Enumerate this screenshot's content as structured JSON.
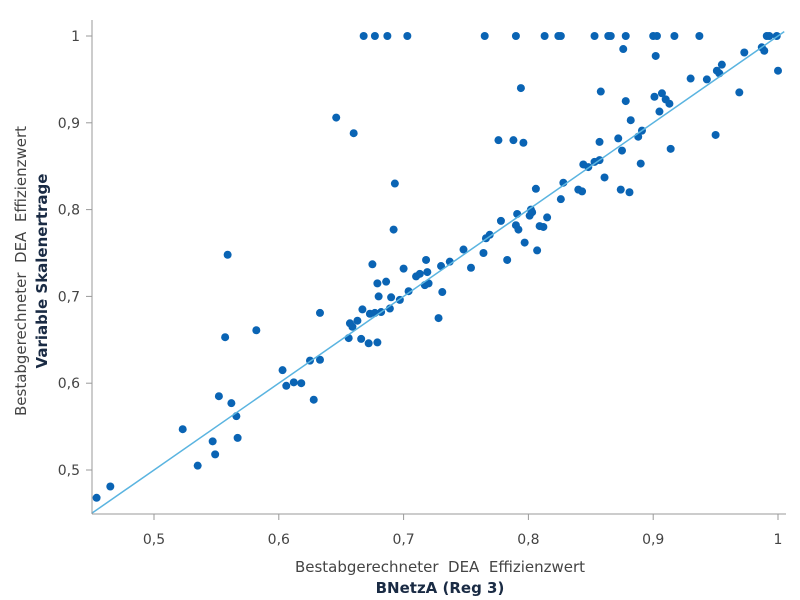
{
  "chart_data": {
    "type": "scatter",
    "xlabel": "Bestabgerechneter  DEA  Effizienzwert",
    "xlabel_bold": "BNetzA (Reg 3)",
    "ylabel": "Bestabgerechneter  DEA  Effizienzwert",
    "ylabel_bold": "Variable Skalenertrage",
    "xlim": [
      0.45,
      1.005
    ],
    "ylim": [
      0.45,
      1.005
    ],
    "x_ticks": [
      0.5,
      0.6,
      0.7,
      0.8,
      0.9,
      1.0
    ],
    "x_tick_labels": [
      "0,5",
      "0,6",
      "0,7",
      "0,8",
      "0,9",
      "1"
    ],
    "y_ticks": [
      0.5,
      0.6,
      0.7,
      0.8,
      0.9,
      1.0
    ],
    "y_tick_labels": [
      "0,5",
      "0,6",
      "0,7",
      "0,8",
      "0,9",
      "1"
    ],
    "grid": false,
    "reference_line": {
      "from": [
        0.45,
        0.45
      ],
      "to": [
        1.005,
        1.005
      ],
      "color": "#5ab4e0"
    },
    "point_color": "#0a64b4",
    "points": [
      [
        0.454,
        0.468
      ],
      [
        0.465,
        0.481
      ],
      [
        0.523,
        0.547
      ],
      [
        0.535,
        0.505
      ],
      [
        0.547,
        0.533
      ],
      [
        0.549,
        0.518
      ],
      [
        0.552,
        0.585
      ],
      [
        0.557,
        0.653
      ],
      [
        0.559,
        0.748
      ],
      [
        0.562,
        0.577
      ],
      [
        0.566,
        0.562
      ],
      [
        0.567,
        0.537
      ],
      [
        0.582,
        0.661
      ],
      [
        0.603,
        0.615
      ],
      [
        0.606,
        0.597
      ],
      [
        0.612,
        0.601
      ],
      [
        0.618,
        0.6
      ],
      [
        0.625,
        0.626
      ],
      [
        0.628,
        0.581
      ],
      [
        0.633,
        0.627
      ],
      [
        0.633,
        0.681
      ],
      [
        0.646,
        0.906
      ],
      [
        0.656,
        0.652
      ],
      [
        0.657,
        0.669
      ],
      [
        0.659,
        0.665
      ],
      [
        0.66,
        0.888
      ],
      [
        0.663,
        0.672
      ],
      [
        0.666,
        0.651
      ],
      [
        0.667,
        0.685
      ],
      [
        0.672,
        0.646
      ],
      [
        0.673,
        0.68
      ],
      [
        0.675,
        0.737
      ],
      [
        0.677,
        0.681
      ],
      [
        0.679,
        0.715
      ],
      [
        0.679,
        0.647
      ],
      [
        0.68,
        0.7
      ],
      [
        0.682,
        0.682
      ],
      [
        0.686,
        0.717
      ],
      [
        0.689,
        0.686
      ],
      [
        0.69,
        0.699
      ],
      [
        0.692,
        0.777
      ],
      [
        0.693,
        0.83
      ],
      [
        0.697,
        0.696
      ],
      [
        0.7,
        0.732
      ],
      [
        0.704,
        0.706
      ],
      [
        0.71,
        0.723
      ],
      [
        0.713,
        0.726
      ],
      [
        0.717,
        0.713
      ],
      [
        0.718,
        0.742
      ],
      [
        0.719,
        0.728
      ],
      [
        0.72,
        0.715
      ],
      [
        0.728,
        0.675
      ],
      [
        0.73,
        0.735
      ],
      [
        0.731,
        0.705
      ],
      [
        0.737,
        0.74
      ],
      [
        0.748,
        0.754
      ],
      [
        0.754,
        0.733
      ],
      [
        0.764,
        0.75
      ],
      [
        0.766,
        0.767
      ],
      [
        0.769,
        0.771
      ],
      [
        0.776,
        0.88
      ],
      [
        0.778,
        0.787
      ],
      [
        0.783,
        0.742
      ],
      [
        0.788,
        0.88
      ],
      [
        0.79,
        0.782
      ],
      [
        0.791,
        0.795
      ],
      [
        0.792,
        0.777
      ],
      [
        0.794,
        0.94
      ],
      [
        0.796,
        0.877
      ],
      [
        0.797,
        0.762
      ],
      [
        0.801,
        0.793
      ],
      [
        0.802,
        0.8
      ],
      [
        0.803,
        0.797
      ],
      [
        0.806,
        0.824
      ],
      [
        0.807,
        0.753
      ],
      [
        0.809,
        0.781
      ],
      [
        0.812,
        0.78
      ],
      [
        0.815,
        0.791
      ],
      [
        0.826,
        0.812
      ],
      [
        0.828,
        0.831
      ],
      [
        0.84,
        0.823
      ],
      [
        0.843,
        0.821
      ],
      [
        0.844,
        0.852
      ],
      [
        0.848,
        0.849
      ],
      [
        0.853,
        0.855
      ],
      [
        0.857,
        0.857
      ],
      [
        0.857,
        0.878
      ],
      [
        0.858,
        0.936
      ],
      [
        0.861,
        0.837
      ],
      [
        0.872,
        0.882
      ],
      [
        0.874,
        0.823
      ],
      [
        0.875,
        0.868
      ],
      [
        0.876,
        0.985
      ],
      [
        0.878,
        0.925
      ],
      [
        0.881,
        0.82
      ],
      [
        0.882,
        0.903
      ],
      [
        0.888,
        0.884
      ],
      [
        0.89,
        0.853
      ],
      [
        0.891,
        0.891
      ],
      [
        0.901,
        0.93
      ],
      [
        0.902,
        0.977
      ],
      [
        0.905,
        0.913
      ],
      [
        0.907,
        0.934
      ],
      [
        0.91,
        0.927
      ],
      [
        0.913,
        0.922
      ],
      [
        0.914,
        0.87
      ],
      [
        0.93,
        0.951
      ],
      [
        0.943,
        0.95
      ],
      [
        0.95,
        0.886
      ],
      [
        0.951,
        0.96
      ],
      [
        0.953,
        0.957
      ],
      [
        0.955,
        0.967
      ],
      [
        0.969,
        0.935
      ],
      [
        0.973,
        0.981
      ],
      [
        0.987,
        0.987
      ],
      [
        0.989,
        0.983
      ],
      [
        1.0,
        0.96
      ],
      [
        0.668,
        1.0
      ],
      [
        0.677,
        1.0
      ],
      [
        0.687,
        1.0
      ],
      [
        0.703,
        1.0
      ],
      [
        0.765,
        1.0
      ],
      [
        0.79,
        1.0
      ],
      [
        0.813,
        1.0
      ],
      [
        0.824,
        1.0
      ],
      [
        0.826,
        1.0
      ],
      [
        0.853,
        1.0
      ],
      [
        0.864,
        1.0
      ],
      [
        0.866,
        1.0
      ],
      [
        0.878,
        1.0
      ],
      [
        0.9,
        1.0
      ],
      [
        0.903,
        1.0
      ],
      [
        0.917,
        1.0
      ],
      [
        0.937,
        1.0
      ],
      [
        0.991,
        1.0
      ],
      [
        0.993,
        1.0
      ],
      [
        0.999,
        1.0
      ]
    ]
  }
}
